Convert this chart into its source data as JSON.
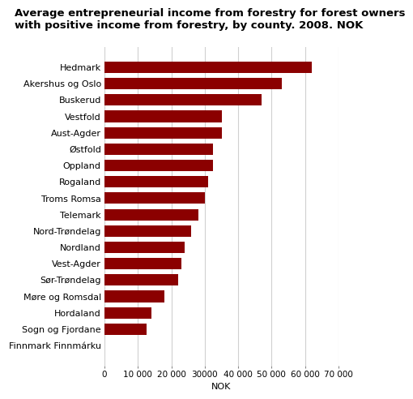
{
  "title_line1": "Average entrepreneurial income from forestry for forest owners",
  "title_line2": "with positive income from forestry, by county. 2008. NOK",
  "categories": [
    "Hedmark",
    "Akershus og Oslo",
    "Buskerud",
    "Vestfold",
    "Aust-Agder",
    "Østfold",
    "Oppland",
    "Rogaland",
    "Troms Romsa",
    "Telemark",
    "Nord-Trøndelag",
    "Nordland",
    "Vest-Agder",
    "Sør-Trøndelag",
    "Møre og Romsdal",
    "Hordaland",
    "Sogn og Fjordane",
    "Finnmark Finnmárku"
  ],
  "values": [
    62000,
    53000,
    47000,
    35000,
    35000,
    32500,
    32500,
    31000,
    30000,
    28000,
    26000,
    24000,
    23000,
    22000,
    18000,
    14000,
    12500,
    0
  ],
  "bar_color": "#8B0000",
  "plot_bg_color": "#ffffff",
  "fig_bg_color": "#ffffff",
  "grid_color": "#d0d0d0",
  "xlabel": "NOK",
  "xlim": [
    0,
    70000
  ],
  "xticks": [
    0,
    10000,
    20000,
    30000,
    40000,
    50000,
    60000,
    70000
  ],
  "xtick_labels": [
    "0",
    "10 000",
    "20 000",
    "30000",
    "40 000",
    "50 000",
    "60 000",
    "70 000"
  ],
  "title_fontsize": 9.5,
  "label_fontsize": 8,
  "tick_fontsize": 7.5,
  "xlabel_fontsize": 8
}
